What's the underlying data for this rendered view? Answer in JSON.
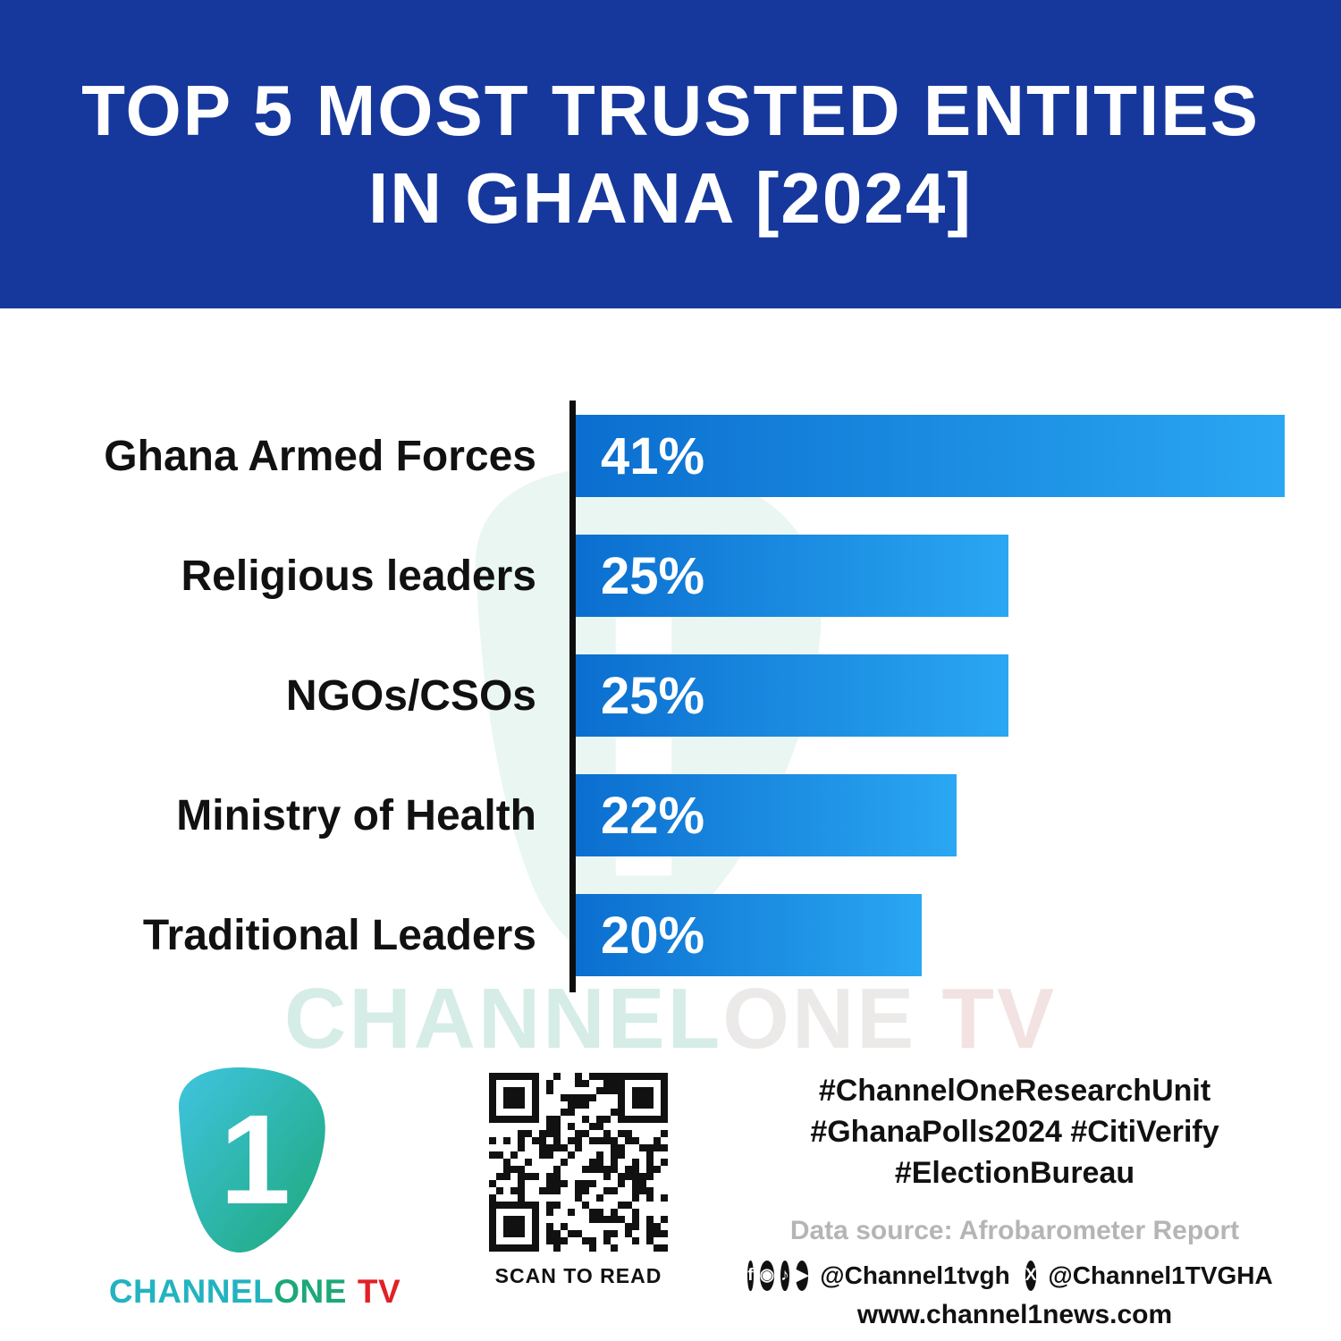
{
  "header": {
    "title_line1": "TOP 5 MOST TRUSTED ENTITIES",
    "title_line2": "IN GHANA [2024]"
  },
  "chart_data": {
    "type": "bar",
    "orientation": "horizontal",
    "title": "Top 5 Most Trusted Entities in Ghana [2024]",
    "categories": [
      "Ghana Armed Forces",
      "Religious leaders",
      "NGOs/CSOs",
      "Ministry of Health",
      "Traditional Leaders"
    ],
    "values": [
      41,
      25,
      25,
      22,
      20
    ],
    "value_labels": [
      "41%",
      "25%",
      "25%",
      "22%",
      "20%"
    ],
    "xlim": [
      0,
      41
    ],
    "grid": false,
    "legend": false,
    "bar_gradient_start": "#0b6ecf",
    "bar_gradient_end": "#2aa7f2"
  },
  "watermark": {
    "part1": "CHANNEL",
    "part2": "ONE",
    "part3": "TV"
  },
  "footer": {
    "brand": {
      "numeral": "1",
      "channel": "CHANNEL",
      "one": "ONE",
      "tv": "TV"
    },
    "qr_caption": "SCAN TO READ",
    "hashtags_line1": "#ChannelOneResearchUnit",
    "hashtags_line2": "#GhanaPolls2024 #CitiVerify",
    "hashtags_line3": "#ElectionBureau",
    "data_source": "Data source: Afrobarometer Report",
    "handle_primary": "@Channel1tvgh",
    "handle_x": "@Channel1TVGHA",
    "website": "www.channel1news.com",
    "icons": {
      "facebook": "f",
      "instagram": "◉",
      "tiktok": "♪",
      "youtube": "▶",
      "x": "X"
    }
  },
  "colors": {
    "header_bg": "#16389d",
    "bar_start": "#0b6ecf",
    "bar_end": "#2aa7f2",
    "axis": "#0d0d0d",
    "brand_teal": "#23b3c0",
    "brand_green": "#1da878",
    "brand_red": "#e02127",
    "watermark_teal": "#d6ece7"
  }
}
